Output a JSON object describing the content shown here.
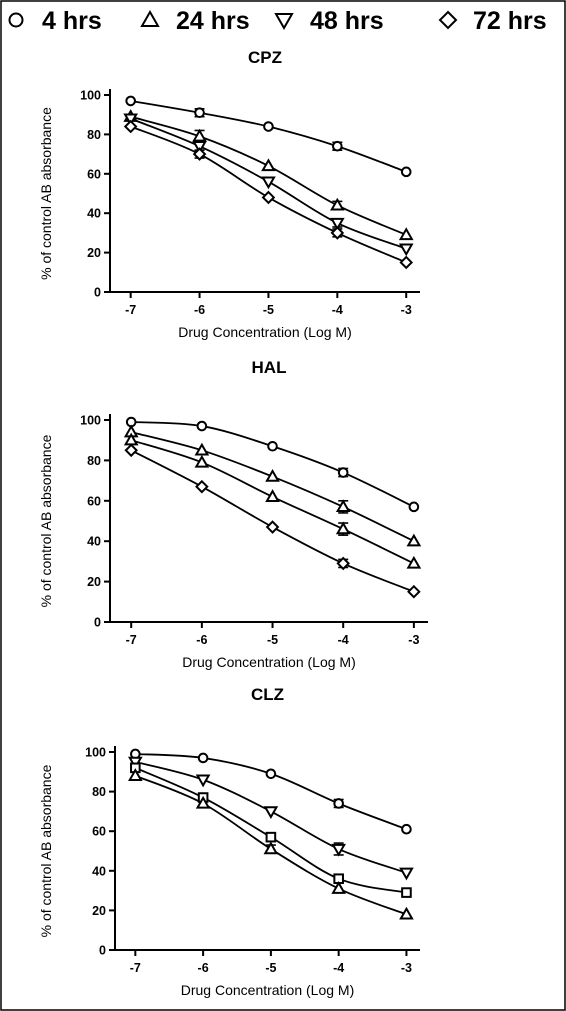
{
  "legend": [
    {
      "label": "4 hrs",
      "marker": "circle-icon"
    },
    {
      "label": "24 hrs",
      "marker": "triangle-up-icon"
    },
    {
      "label": "48 hrs",
      "marker": "triangle-down-icon"
    },
    {
      "label": "72 hrs",
      "marker": "diamond-icon"
    }
  ],
  "chart_data": [
    {
      "type": "line",
      "title": "CPZ",
      "xlabel": "Drug Concentration (Log M)",
      "ylabel": "% of control AB absorbance",
      "xlim": [
        -7.3,
        -2.8
      ],
      "ylim": [
        0,
        100
      ],
      "xticks": [
        -7,
        -6,
        -5,
        -4,
        -3
      ],
      "yticks": [
        0,
        20,
        40,
        60,
        80,
        100
      ],
      "grid": false,
      "legend_position": "top",
      "series": [
        {
          "name": "4 hrs",
          "marker": "circle",
          "x": [
            -7,
            -6,
            -5,
            -4,
            -3
          ],
          "y": [
            97,
            91,
            84,
            74,
            61
          ],
          "err": [
            0,
            2,
            0,
            2,
            0
          ]
        },
        {
          "name": "24 hrs",
          "marker": "triangle-up",
          "x": [
            -7,
            -6,
            -5,
            -4,
            -3
          ],
          "y": [
            89,
            79,
            64,
            44,
            29
          ],
          "err": [
            0,
            3,
            0,
            2,
            0
          ]
        },
        {
          "name": "48 hrs",
          "marker": "triangle-down",
          "x": [
            -7,
            -6,
            -5,
            -4,
            -3
          ],
          "y": [
            88,
            74,
            56,
            35,
            22
          ],
          "err": [
            0,
            2,
            0,
            2,
            0
          ]
        },
        {
          "name": "72 hrs",
          "marker": "diamond",
          "x": [
            -7,
            -6,
            -5,
            -4,
            -3
          ],
          "y": [
            84,
            70,
            48,
            30,
            15
          ],
          "err": [
            0,
            2,
            0,
            2,
            0
          ]
        }
      ]
    },
    {
      "type": "line",
      "title": "HAL",
      "xlabel": "Drug Concentration (Log M)",
      "ylabel": "% of control AB absorbance",
      "xlim": [
        -7.3,
        -2.8
      ],
      "ylim": [
        0,
        100
      ],
      "xticks": [
        -7,
        -6,
        -5,
        -4,
        -3
      ],
      "yticks": [
        0,
        20,
        40,
        60,
        80,
        100
      ],
      "grid": false,
      "series": [
        {
          "name": "4 hrs",
          "marker": "circle",
          "x": [
            -7,
            -6,
            -5,
            -4,
            -3
          ],
          "y": [
            99,
            97,
            87,
            74,
            57
          ],
          "err": [
            0,
            0,
            0,
            2,
            0
          ]
        },
        {
          "name": "24 hrs",
          "marker": "triangle-up",
          "x": [
            -7,
            -6,
            -5,
            -4,
            -3
          ],
          "y": [
            94,
            85,
            72,
            57,
            40
          ],
          "err": [
            0,
            0,
            0,
            3,
            0
          ]
        },
        {
          "name": "48 hrs",
          "marker": "triangle-up",
          "x": [
            -7,
            -6,
            -5,
            -4,
            -3
          ],
          "y": [
            90,
            79,
            62,
            46,
            29
          ],
          "err": [
            0,
            0,
            0,
            3,
            0
          ]
        },
        {
          "name": "72 hrs",
          "marker": "diamond",
          "x": [
            -7,
            -6,
            -5,
            -4,
            -3
          ],
          "y": [
            85,
            67,
            47,
            29,
            15
          ],
          "err": [
            0,
            0,
            0,
            2,
            0
          ]
        }
      ]
    },
    {
      "type": "line",
      "title": "CLZ",
      "xlabel": "Drug Concentration (Log M)",
      "ylabel": "% of control AB absorbance",
      "xlim": [
        -7.3,
        -2.8
      ],
      "ylim": [
        0,
        100
      ],
      "xticks": [
        -7,
        -6,
        -5,
        -4,
        -3
      ],
      "yticks": [
        0,
        20,
        40,
        60,
        80,
        100
      ],
      "grid": false,
      "series": [
        {
          "name": "4 hrs",
          "marker": "circle",
          "x": [
            -7,
            -6,
            -5,
            -4,
            -3
          ],
          "y": [
            99,
            97,
            89,
            74,
            61
          ],
          "err": [
            0,
            0,
            0,
            2,
            0
          ]
        },
        {
          "name": "48 hrs",
          "marker": "triangle-down",
          "x": [
            -7,
            -6,
            -5,
            -4,
            -3
          ],
          "y": [
            95,
            86,
            70,
            51,
            39
          ],
          "err": [
            0,
            0,
            0,
            3,
            0
          ]
        },
        {
          "name": "72 hrs",
          "marker": "square",
          "x": [
            -7,
            -6,
            -5,
            -4,
            -3
          ],
          "y": [
            92,
            77,
            57,
            36,
            29
          ],
          "err": [
            0,
            2,
            0,
            2,
            0
          ]
        },
        {
          "name": "24 hrs",
          "marker": "triangle-up",
          "x": [
            -7,
            -6,
            -5,
            -4,
            -3
          ],
          "y": [
            88,
            74,
            51,
            31,
            18
          ],
          "err": [
            0,
            0,
            2,
            0,
            0
          ]
        }
      ]
    }
  ]
}
